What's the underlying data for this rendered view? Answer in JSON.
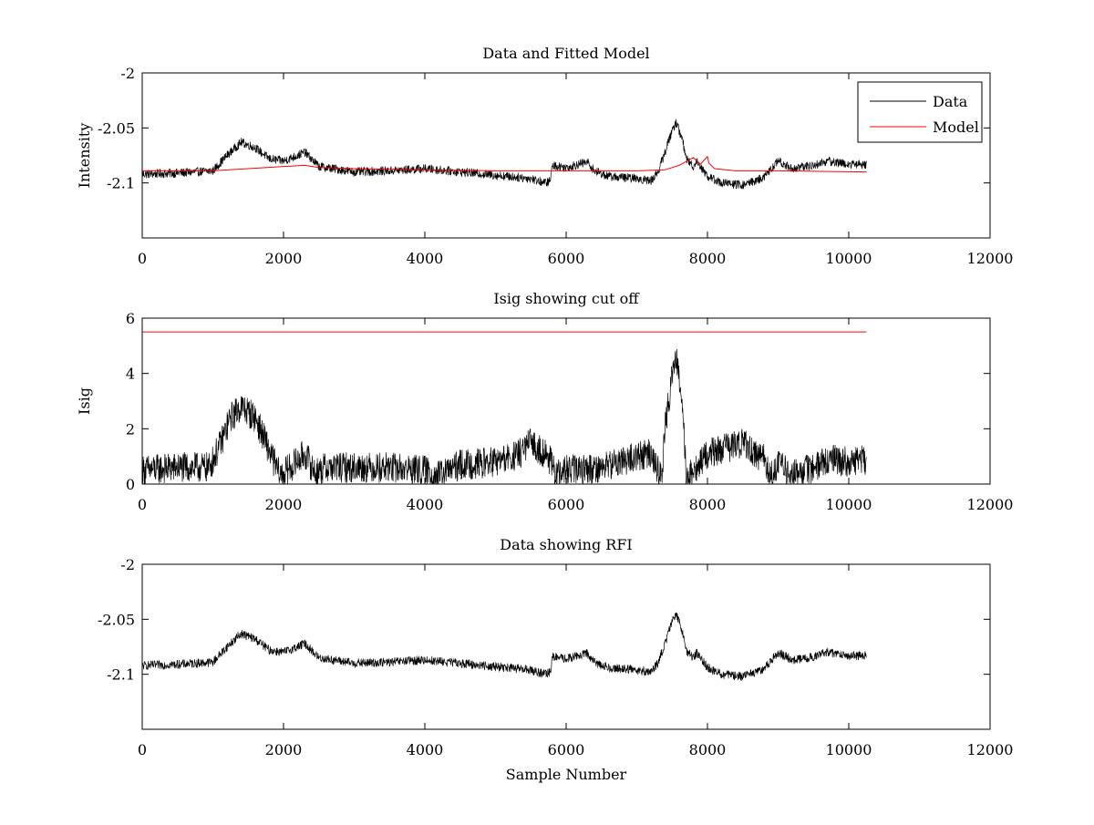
{
  "figure": {
    "background": "#ffffff"
  },
  "colors": {
    "data": "#000000",
    "model": "#ff0000",
    "axes": "#000000"
  },
  "chart_data": [
    {
      "type": "line",
      "title": "Data and Fitted Model",
      "xlabel": "",
      "ylabel": "Intensity",
      "xlim": [
        0,
        12000
      ],
      "ylim": [
        -2.15,
        -2.0
      ],
      "xticks": [
        0,
        2000,
        4000,
        6000,
        8000,
        10000,
        12000
      ],
      "xtick_labels": [
        "0",
        "2000",
        "4000",
        "6000",
        "8000",
        "10000",
        "12000"
      ],
      "yticks": [
        -2.0,
        -2.05,
        -2.1
      ],
      "ytick_labels": [
        "-2",
        "-2.05",
        "-2.1"
      ],
      "legend": {
        "placement": "top-right",
        "entries": [
          "Data",
          "Model"
        ]
      },
      "grid": false,
      "series": [
        {
          "name": "Data",
          "color": "#000000",
          "noise": 0.004,
          "x": [
            0,
            500,
            1000,
            1200,
            1400,
            1600,
            1800,
            2000,
            2200,
            2300,
            2500,
            3000,
            3500,
            4000,
            4500,
            5000,
            5500,
            5700,
            5780,
            5800,
            6000,
            6300,
            6400,
            6600,
            7000,
            7200,
            7300,
            7400,
            7500,
            7560,
            7650,
            7700,
            7800,
            7850,
            8000,
            8200,
            8500,
            8800,
            9000,
            9200,
            9500,
            9700,
            10000,
            10250
          ],
          "y": [
            -2.092,
            -2.091,
            -2.089,
            -2.075,
            -2.063,
            -2.068,
            -2.078,
            -2.08,
            -2.075,
            -2.072,
            -2.085,
            -2.09,
            -2.089,
            -2.087,
            -2.09,
            -2.093,
            -2.096,
            -2.1,
            -2.098,
            -2.084,
            -2.086,
            -2.081,
            -2.089,
            -2.094,
            -2.096,
            -2.098,
            -2.09,
            -2.072,
            -2.052,
            -2.045,
            -2.062,
            -2.078,
            -2.085,
            -2.08,
            -2.094,
            -2.1,
            -2.102,
            -2.095,
            -2.08,
            -2.087,
            -2.084,
            -2.08,
            -2.083,
            -2.083
          ]
        },
        {
          "name": "Model",
          "color": "#ff0000",
          "noise": 0,
          "x": [
            0,
            1000,
            1500,
            2000,
            2300,
            2500,
            3000,
            4000,
            5000,
            6000,
            7000,
            7400,
            7600,
            7800,
            7850,
            7900,
            8000,
            8020,
            8100,
            8400,
            9000,
            10250
          ],
          "y": [
            -2.089,
            -2.089,
            -2.087,
            -2.085,
            -2.084,
            -2.086,
            -2.087,
            -2.088,
            -2.089,
            -2.089,
            -2.089,
            -2.088,
            -2.084,
            -2.077,
            -2.08,
            -2.083,
            -2.076,
            -2.082,
            -2.087,
            -2.089,
            -2.089,
            -2.09
          ]
        }
      ]
    },
    {
      "type": "line",
      "title": "Isig showing cut off",
      "xlabel": "",
      "ylabel": "Isig",
      "xlim": [
        0,
        12000
      ],
      "ylim": [
        0,
        6
      ],
      "xticks": [
        0,
        2000,
        4000,
        6000,
        8000,
        10000,
        12000
      ],
      "xtick_labels": [
        "0",
        "2000",
        "4000",
        "6000",
        "8000",
        "10000",
        "12000"
      ],
      "yticks": [
        0,
        2,
        4,
        6
      ],
      "ytick_labels": [
        "0",
        "2",
        "4",
        "6"
      ],
      "grid": false,
      "series": [
        {
          "name": "Isig",
          "color": "#000000",
          "noise": 0.55,
          "x": [
            0,
            500,
            950,
            1100,
            1250,
            1400,
            1600,
            1800,
            1950,
            2100,
            2300,
            2450,
            2600,
            3000,
            3500,
            4000,
            4200,
            4500,
            5000,
            5300,
            5500,
            5750,
            5850,
            6000,
            6500,
            7000,
            7200,
            7300,
            7350,
            7400,
            7500,
            7560,
            7650,
            7700,
            7800,
            8000,
            8500,
            8800,
            8900,
            9000,
            9200,
            9500,
            9700,
            10000,
            10250
          ],
          "y": [
            0.5,
            0.6,
            0.6,
            1.4,
            2.4,
            2.8,
            2.4,
            1.2,
            0.3,
            0.6,
            1.1,
            0.4,
            0.6,
            0.6,
            0.6,
            0.5,
            0.3,
            0.7,
            0.8,
            1.0,
            1.5,
            1.0,
            0.3,
            0.5,
            0.6,
            1.0,
            1.1,
            0.5,
            0.1,
            2.0,
            4.0,
            4.5,
            3.0,
            0.2,
            0.4,
            1.1,
            1.5,
            0.9,
            0.3,
            0.7,
            0.3,
            0.6,
            0.9,
            0.8,
            0.9
          ]
        },
        {
          "name": "Cut off",
          "color": "#ff0000",
          "noise": 0,
          "x": [
            0,
            10250
          ],
          "y": [
            5.5,
            5.5
          ]
        }
      ]
    },
    {
      "type": "line",
      "title": "Data showing RFI",
      "xlabel": "Sample Number",
      "ylabel": "",
      "xlim": [
        0,
        12000
      ],
      "ylim": [
        -2.15,
        -2.0
      ],
      "xticks": [
        0,
        2000,
        4000,
        6000,
        8000,
        10000,
        12000
      ],
      "xtick_labels": [
        "0",
        "2000",
        "4000",
        "6000",
        "8000",
        "10000",
        "12000"
      ],
      "yticks": [
        -2.0,
        -2.05,
        -2.1
      ],
      "ytick_labels": [
        "-2",
        "-2.05",
        "-2.1"
      ],
      "grid": false,
      "series": [
        {
          "name": "Data",
          "color": "#000000",
          "noise": 0.004,
          "x": [
            0,
            500,
            1000,
            1200,
            1400,
            1600,
            1800,
            2000,
            2200,
            2300,
            2500,
            3000,
            3500,
            4000,
            4500,
            5000,
            5500,
            5700,
            5780,
            5800,
            6000,
            6300,
            6400,
            6600,
            7000,
            7200,
            7300,
            7400,
            7500,
            7560,
            7650,
            7700,
            7800,
            7850,
            8000,
            8200,
            8500,
            8800,
            9000,
            9200,
            9500,
            9700,
            10000,
            10250
          ],
          "y": [
            -2.092,
            -2.091,
            -2.089,
            -2.075,
            -2.063,
            -2.068,
            -2.078,
            -2.08,
            -2.075,
            -2.072,
            -2.085,
            -2.09,
            -2.089,
            -2.087,
            -2.09,
            -2.093,
            -2.096,
            -2.1,
            -2.098,
            -2.084,
            -2.086,
            -2.081,
            -2.089,
            -2.094,
            -2.096,
            -2.098,
            -2.09,
            -2.072,
            -2.052,
            -2.045,
            -2.062,
            -2.078,
            -2.085,
            -2.08,
            -2.094,
            -2.1,
            -2.102,
            -2.095,
            -2.08,
            -2.087,
            -2.084,
            -2.08,
            -2.083,
            -2.083
          ]
        }
      ]
    }
  ]
}
